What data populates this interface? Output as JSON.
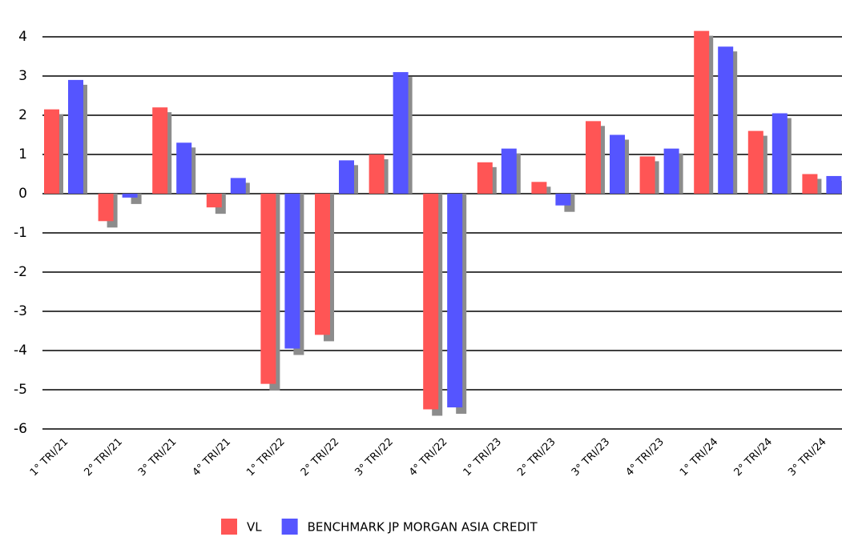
{
  "chart_data": {
    "type": "bar",
    "categories": [
      "1° TRI/21",
      "2° TRI/21",
      "3° TRI/21",
      "4° TRI/21",
      "1° TRI/22",
      "2° TRI/22",
      "3° TRI/22",
      "4° TRI/22",
      "1° TRI/23",
      "2° TRI/23",
      "3° TRI/23",
      "4° TRI/23",
      "1° TRI/24",
      "2° TRI/24",
      "3° TRI/24"
    ],
    "series": [
      {
        "name": "VL",
        "color": "#ff5555",
        "values": [
          2.15,
          -0.7,
          2.2,
          -0.35,
          -4.85,
          -3.6,
          1.0,
          -5.5,
          0.8,
          0.3,
          1.85,
          0.95,
          4.15,
          1.6,
          0.5
        ]
      },
      {
        "name": "BENCHMARK JP MORGAN ASIA CREDIT",
        "color": "#5555ff",
        "values": [
          2.9,
          -0.1,
          1.3,
          0.4,
          -3.95,
          0.85,
          3.1,
          -5.45,
          1.15,
          -0.3,
          1.5,
          1.15,
          3.75,
          2.05,
          0.45
        ]
      }
    ],
    "ylim": [
      -6,
      4.5
    ],
    "yticks": [
      -6,
      -5,
      -4,
      -3,
      -2,
      -1,
      0,
      1,
      2,
      3,
      4
    ],
    "grid": true
  }
}
